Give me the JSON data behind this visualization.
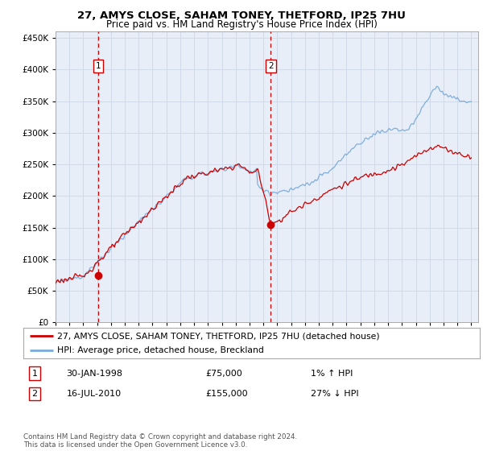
{
  "title1": "27, AMYS CLOSE, SAHAM TONEY, THETFORD, IP25 7HU",
  "title2": "Price paid vs. HM Land Registry's House Price Index (HPI)",
  "legend_line1": "27, AMYS CLOSE, SAHAM TONEY, THETFORD, IP25 7HU (detached house)",
  "legend_line2": "HPI: Average price, detached house, Breckland",
  "table_row1": [
    "1",
    "30-JAN-1998",
    "£75,000",
    "1% ↑ HPI"
  ],
  "table_row2": [
    "2",
    "16-JUL-2010",
    "£155,000",
    "27% ↓ HPI"
  ],
  "footnote": "Contains HM Land Registry data © Crown copyright and database right 2024.\nThis data is licensed under the Open Government Licence v3.0.",
  "sale1_year": 1998.08,
  "sale1_price": 75000,
  "sale2_year": 2010.54,
  "sale2_price": 155000,
  "red_color": "#cc0000",
  "blue_color": "#7aabdb",
  "grid_color": "#d0dae8",
  "plot_bg": "#e8eef8",
  "ylim_max": 460000,
  "yticks": [
    0,
    50000,
    100000,
    150000,
    200000,
    250000,
    300000,
    350000,
    400000,
    450000
  ],
  "xmin": 1995,
  "xmax": 2025
}
